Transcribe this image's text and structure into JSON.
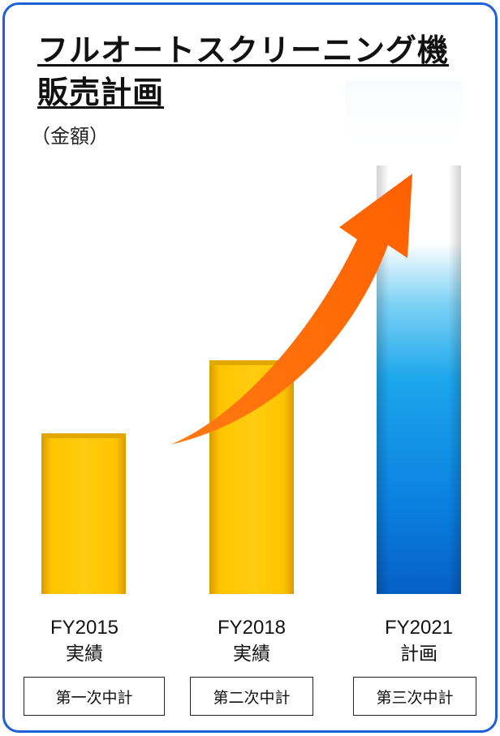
{
  "title_line1": "フルオートスクリーニング機",
  "title_line2": "販売計画",
  "unit_label": "（金額）",
  "colors": {
    "border": "#1f5fd8",
    "actual_bar": "#ffc400",
    "plan_bar": "#0a7fe0",
    "arrow": "#ff6a00"
  },
  "chart_data": {
    "type": "bar",
    "categories": [
      "FY2015 実績",
      "FY2018 実績",
      "FY2021 計画"
    ],
    "values": [
      33,
      48,
      88
    ],
    "ylim": [
      0,
      100
    ],
    "plan_type": [
      "actual",
      "actual",
      "plan"
    ],
    "trend_arrow": true,
    "grid": false,
    "legend": "none"
  },
  "bars": [
    {
      "year": "FY2015",
      "status": "実績",
      "plan": "第一次中計"
    },
    {
      "year": "FY2018",
      "status": "実績",
      "plan": "第二次中計"
    },
    {
      "year": "FY2021",
      "status": "計画",
      "plan": "第三次中計"
    }
  ]
}
